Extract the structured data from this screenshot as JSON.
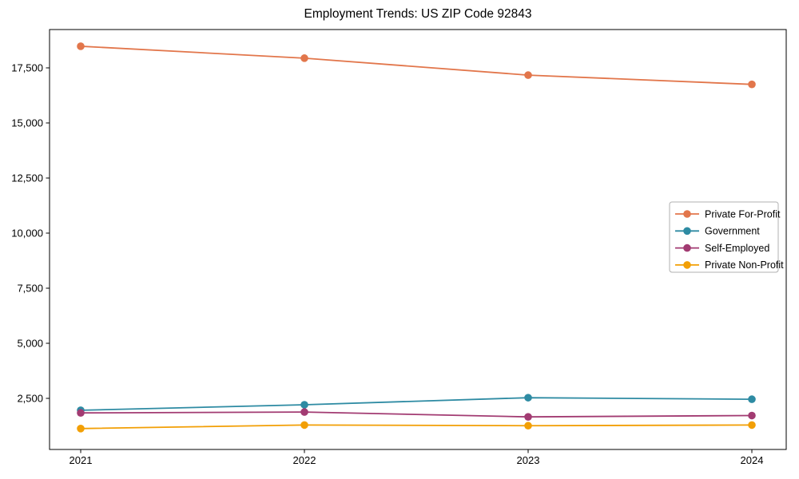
{
  "chart_data": {
    "type": "line",
    "title": "Employment Trends: US ZIP Code 92843",
    "x": [
      "2021",
      "2022",
      "2023",
      "2024"
    ],
    "xlabel": "",
    "ylabel": "",
    "ylim": [
      181,
      19239
    ],
    "yticks": [
      2500,
      5000,
      7500,
      10000,
      12500,
      15000,
      17500
    ],
    "grid": false,
    "legend_position": "center right",
    "series": [
      {
        "name": "Private For-Profit",
        "color": "#E2764B",
        "values": [
          18480,
          17940,
          17170,
          16750
        ]
      },
      {
        "name": "Government",
        "color": "#2E8BA3",
        "values": [
          1960,
          2210,
          2530,
          2460
        ]
      },
      {
        "name": "Self-Employed",
        "color": "#A23B72",
        "values": [
          1840,
          1880,
          1660,
          1720
        ]
      },
      {
        "name": "Private Non-Profit",
        "color": "#F29F05",
        "values": [
          1130,
          1290,
          1260,
          1290
        ]
      }
    ],
    "axis_color": "#000000",
    "legend_border_color": "#b0b0b0",
    "background_color": "#ffffff"
  }
}
